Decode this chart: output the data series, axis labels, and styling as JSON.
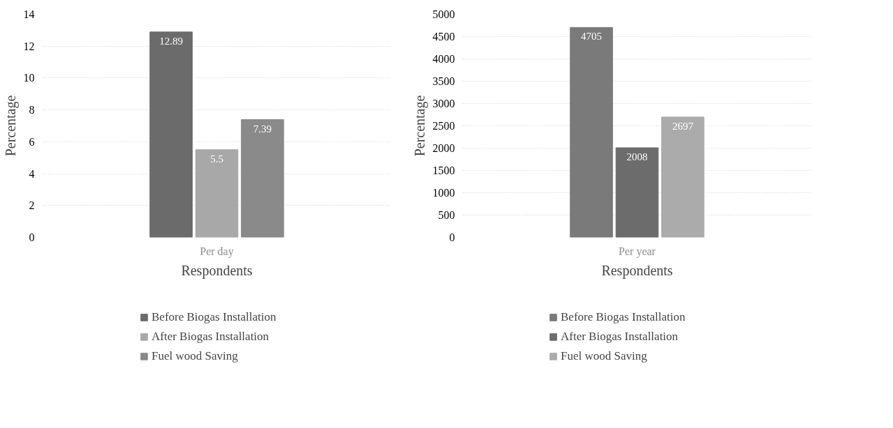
{
  "chart_data": [
    {
      "type": "bar",
      "categories": [
        "Per day"
      ],
      "xlabel": "Respondents",
      "ylabel": "Percentage",
      "ylim": [
        0,
        14
      ],
      "yticks": [
        0,
        2,
        4,
        6,
        8,
        10,
        12,
        14
      ],
      "grid": "y",
      "legend": "bottom",
      "data_labels": true,
      "series": [
        {
          "name": "Before Biogas Installation",
          "color": "#6b6b6b",
          "values": [
            12.89
          ]
        },
        {
          "name": "After Biogas Installation",
          "color": "#a8a8a8",
          "values": [
            5.5
          ]
        },
        {
          "name": "Fuel wood Saving",
          "color": "#8a8a8a",
          "values": [
            7.39
          ]
        }
      ]
    },
    {
      "type": "bar",
      "categories": [
        "Per year"
      ],
      "xlabel": "Respondents",
      "ylabel": "Percentage",
      "ylim": [
        0,
        5000
      ],
      "yticks": [
        0,
        500,
        1000,
        1500,
        2000,
        2500,
        3000,
        3500,
        4000,
        4500,
        5000
      ],
      "grid": "y",
      "legend": "bottom",
      "data_labels": true,
      "series": [
        {
          "name": "Before Biogas Installation",
          "color": "#7a7a7a",
          "values": [
            4705
          ]
        },
        {
          "name": "After Biogas Installation",
          "color": "#6c6c6c",
          "values": [
            2008
          ]
        },
        {
          "name": "Fuel wood Saving",
          "color": "#ababab",
          "values": [
            2697
          ]
        }
      ]
    }
  ]
}
